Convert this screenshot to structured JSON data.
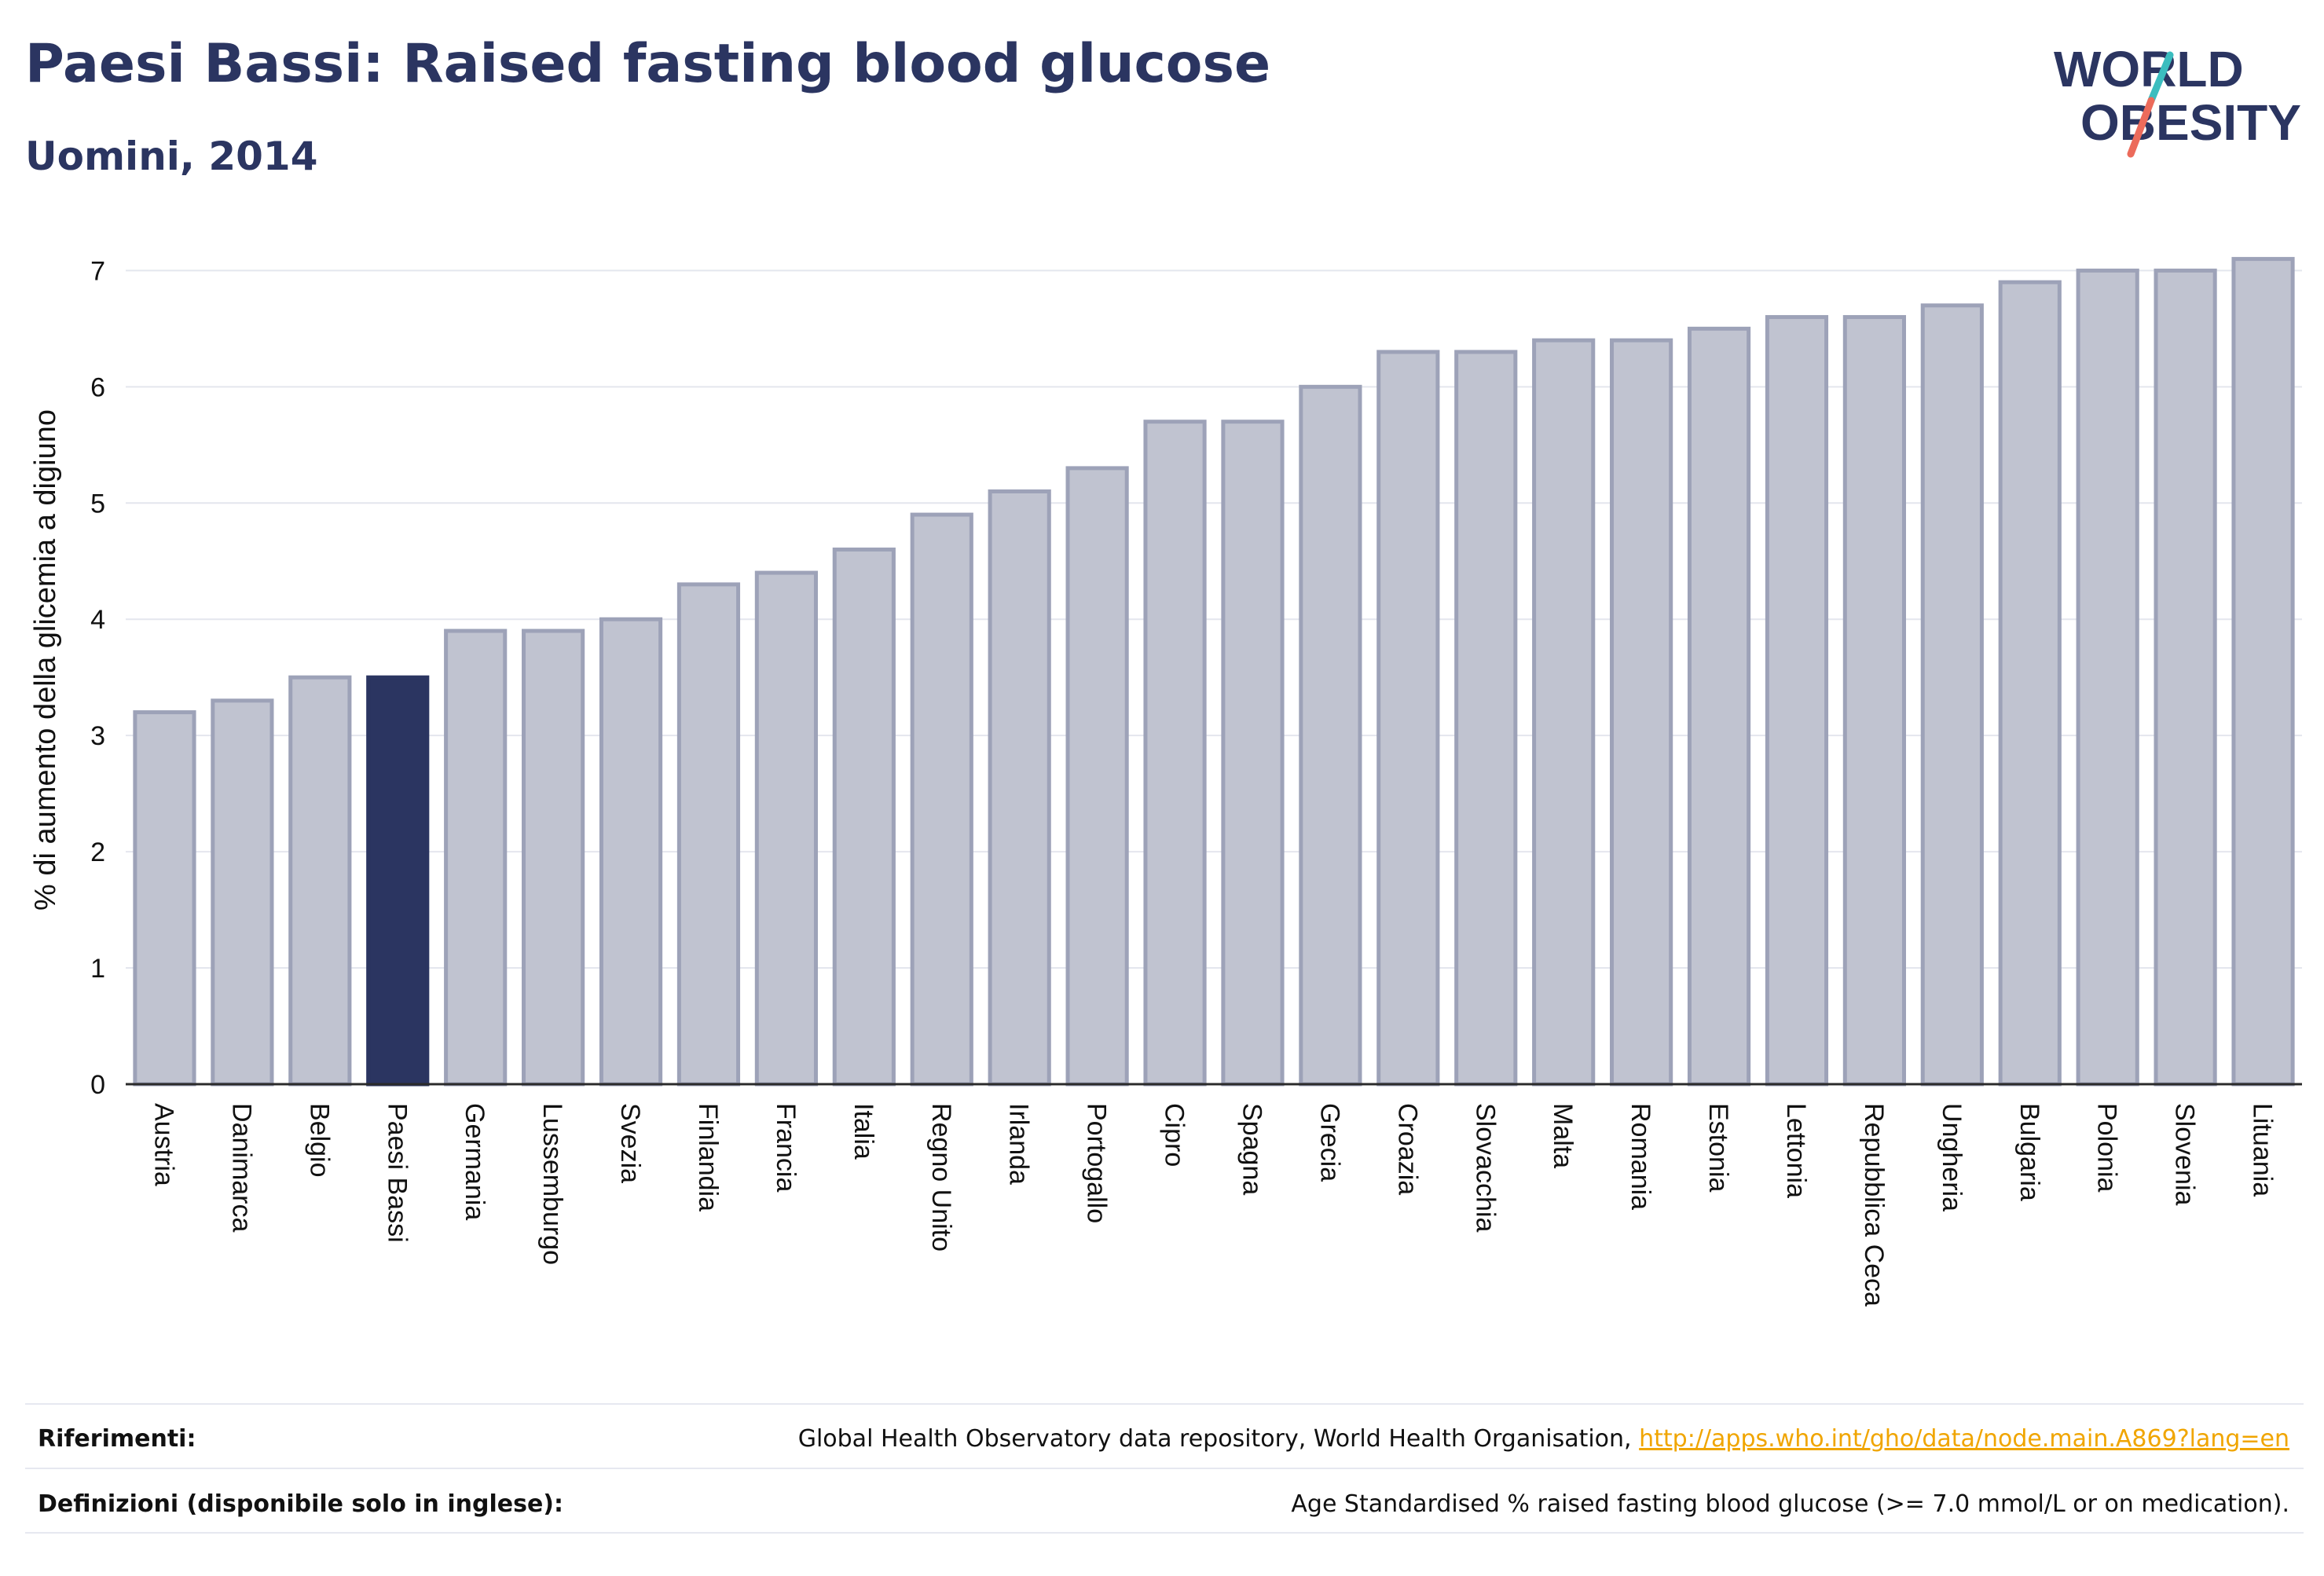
{
  "header": {
    "title": "Paesi Bassi: Raised fasting blood glucose",
    "subtitle": "Uomini, 2014"
  },
  "logo": {
    "line1": "WORLD",
    "line2": "OBESITY",
    "colors": {
      "text": "#2b3561",
      "slash_teal": "#3bbdbf",
      "slash_coral": "#ec6b5b"
    }
  },
  "chart_data": {
    "type": "bar",
    "ylabel": "% di aumento della glicemia a digiuno",
    "xlabel": "",
    "ylim": [
      0,
      7.3
    ],
    "yticks": [
      0,
      1,
      2,
      3,
      4,
      5,
      6,
      7
    ],
    "grid": true,
    "highlight": "Paesi Bassi",
    "colors": {
      "bar": "#c0c3d0",
      "bar_edge": "#9da2b8",
      "highlight": "#2b3561"
    },
    "categories": [
      "Austria",
      "Danimarca",
      "Belgio",
      "Paesi Bassi",
      "Germania",
      "Lussemburgo",
      "Svezia",
      "Finlandia",
      "Francia",
      "Italia",
      "Regno Unito",
      "Irlanda",
      "Portogallo",
      "Cipro",
      "Spagna",
      "Grecia",
      "Croazia",
      "Slovacchia",
      "Malta",
      "Romania",
      "Estonia",
      "Lettonia",
      "Repubblica Ceca",
      "Ungheria",
      "Bulgaria",
      "Polonia",
      "Slovenia",
      "Lituania"
    ],
    "values": [
      3.2,
      3.3,
      3.5,
      3.5,
      3.9,
      3.9,
      4.0,
      4.3,
      4.4,
      4.6,
      4.9,
      5.1,
      5.3,
      5.7,
      5.7,
      6.0,
      6.3,
      6.3,
      6.4,
      6.4,
      6.5,
      6.6,
      6.6,
      6.7,
      6.9,
      7.0,
      7.0,
      7.1
    ]
  },
  "footer": {
    "references_label": "Riferimenti:",
    "references_text": "Global Health Observatory data repository, World Health Organisation,",
    "references_link": "http://apps.who.int/gho/data/node.main.A869?lang=en",
    "definitions_label": "Definizioni (disponibile solo in inglese):",
    "definitions_text": "Age Standardised % raised fasting blood glucose (>= 7.0 mmol/L or on medication)."
  }
}
